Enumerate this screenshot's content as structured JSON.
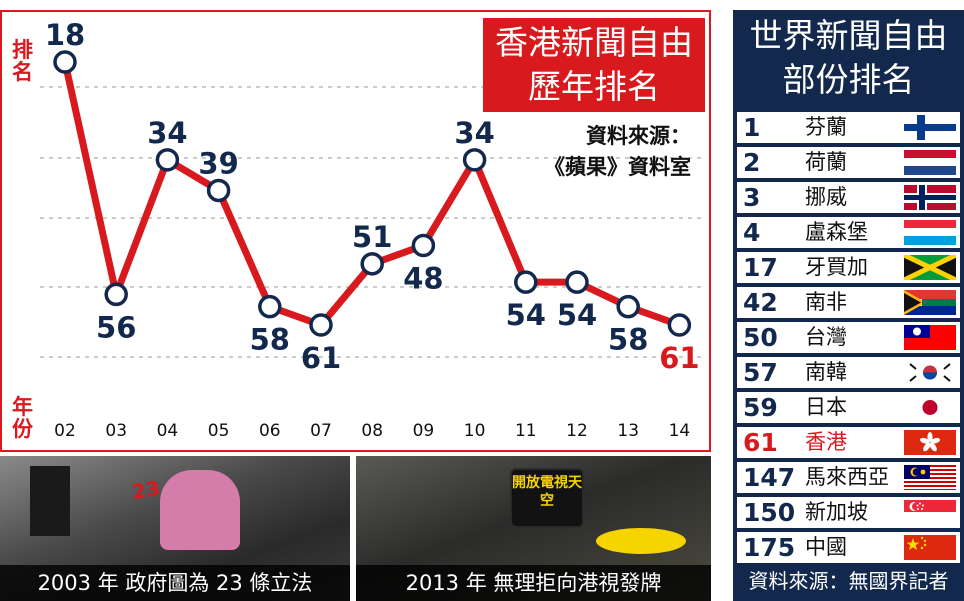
{
  "chart_title_lines": [
    "香港新聞自由",
    "歷年排名"
  ],
  "chart_source_lines": [
    "資料來源：",
    "《蘋果》資料室"
  ],
  "y_unit_label": "排名",
  "x_unit_label": "年份",
  "chart_data": {
    "type": "line",
    "title": "香港新聞自由歷年排名",
    "xlabel": "年份",
    "ylabel": "排名",
    "categories": [
      "02",
      "03",
      "04",
      "05",
      "06",
      "07",
      "08",
      "09",
      "10",
      "11",
      "12",
      "13",
      "14"
    ],
    "values": [
      18,
      56,
      34,
      39,
      58,
      61,
      51,
      48,
      34,
      54,
      54,
      58,
      61
    ],
    "y_inverted": true,
    "grid": "horizontal dashed",
    "line_color": "#d8191e",
    "label_color": "#13284d",
    "highlight_last_color": "#d8191e"
  },
  "photos": [
    {
      "caption": "2003 年  政府圖為 23 條立法",
      "overlay_text": "23",
      "icon": "protest-crowd-photo"
    },
    {
      "caption": "2013 年  無理拒向港視發牌",
      "overlay_text": "開放電視天空",
      "icon": "protest-sign-photo"
    }
  ],
  "ranking_panel": {
    "title_lines": [
      "世界新聞自由",
      "部份排名"
    ],
    "rows": [
      {
        "rank": "1",
        "country": "芬蘭",
        "flag": "finland"
      },
      {
        "rank": "2",
        "country": "荷蘭",
        "flag": "netherlands"
      },
      {
        "rank": "3",
        "country": "挪威",
        "flag": "norway"
      },
      {
        "rank": "4",
        "country": "盧森堡",
        "flag": "luxembourg"
      },
      {
        "rank": "17",
        "country": "牙買加",
        "flag": "jamaica"
      },
      {
        "rank": "42",
        "country": "南非",
        "flag": "south-africa"
      },
      {
        "rank": "50",
        "country": "台灣",
        "flag": "taiwan"
      },
      {
        "rank": "57",
        "country": "南韓",
        "flag": "south-korea"
      },
      {
        "rank": "59",
        "country": "日本",
        "flag": "japan"
      },
      {
        "rank": "61",
        "country": "香港",
        "flag": "hong-kong",
        "highlight": true
      },
      {
        "rank": "147",
        "country": "馬來西亞",
        "flag": "malaysia"
      },
      {
        "rank": "150",
        "country": "新加坡",
        "flag": "singapore"
      },
      {
        "rank": "175",
        "country": "中國",
        "flag": "china"
      }
    ],
    "source": "資料來源：無國界記者"
  },
  "colors": {
    "accent_red": "#d8191e",
    "navy": "#13284d",
    "grid": "#999999"
  }
}
